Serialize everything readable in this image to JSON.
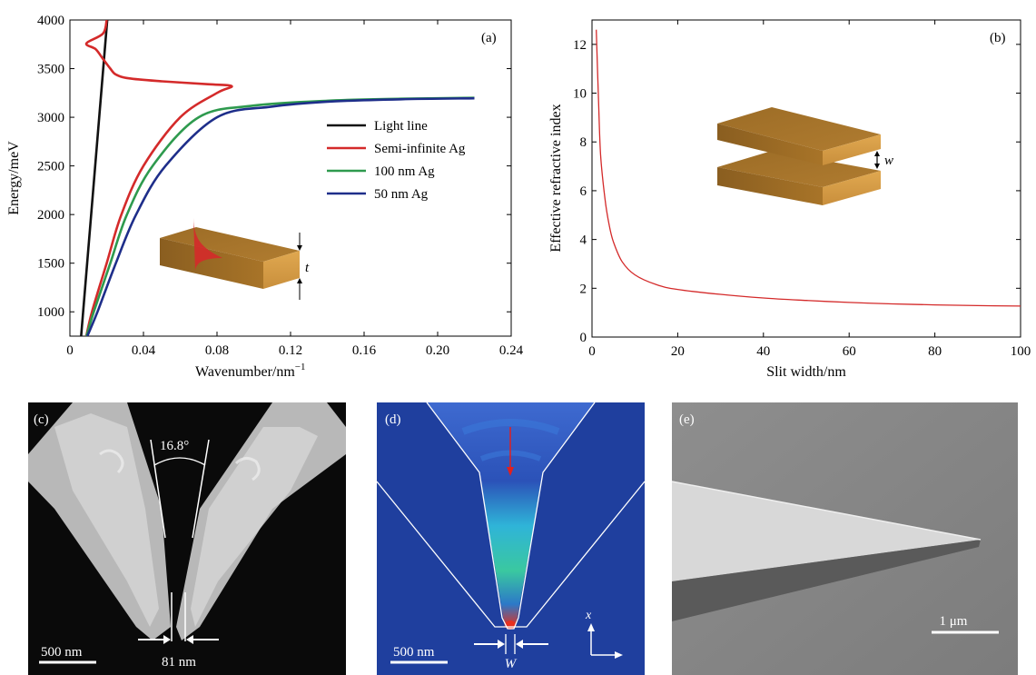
{
  "chart_data": [
    {
      "panel": "(a)",
      "type": "line",
      "xlabel": "Wavenumber/nm",
      "xlabel_sup": "−1",
      "ylabel": "Energy/meV",
      "xlim": [
        0,
        0.24
      ],
      "ylim": [
        750,
        4000
      ],
      "xticks": [
        "0",
        "0.04",
        "0.08",
        "0.12",
        "0.16",
        "0.20",
        "0.24"
      ],
      "yticks": [
        "1000",
        "1500",
        "2000",
        "2500",
        "3000",
        "3500",
        "4000"
      ],
      "legend_position": "right",
      "inset_label": "t",
      "series": [
        {
          "name": "Light line",
          "color": "#111111",
          "points": [
            [
              0.0061,
              750
            ],
            [
              0.0203,
              4000
            ]
          ]
        },
        {
          "name": "Semi-infinite Ag",
          "color": "#d42a2a",
          "points": [
            [
              0.0089,
              750
            ],
            [
              0.012,
              1000
            ],
            [
              0.02,
              1500
            ],
            [
              0.028,
              2000
            ],
            [
              0.04,
              2500
            ],
            [
              0.06,
              3000
            ],
            [
              0.08,
              3250
            ],
            [
              0.088,
              3320
            ],
            [
              0.075,
              3340
            ],
            [
              0.05,
              3370
            ],
            [
              0.032,
              3400
            ],
            [
              0.025,
              3440
            ],
            [
              0.022,
              3500
            ],
            [
              0.018,
              3600
            ],
            [
              0.014,
              3700
            ],
            [
              0.009,
              3760
            ],
            [
              0.018,
              3860
            ],
            [
              0.02,
              4000
            ]
          ]
        },
        {
          "name": "100 nm Ag",
          "color": "#2e9a4e",
          "points": [
            [
              0.009,
              750
            ],
            [
              0.013,
              1000
            ],
            [
              0.022,
              1500
            ],
            [
              0.031,
              2000
            ],
            [
              0.045,
              2500
            ],
            [
              0.07,
              3000
            ],
            [
              0.1,
              3120
            ],
            [
              0.14,
              3170
            ],
            [
              0.18,
              3190
            ],
            [
              0.22,
              3200
            ]
          ]
        },
        {
          "name": "50 nm Ag",
          "color": "#1e2e8a",
          "points": [
            [
              0.0095,
              750
            ],
            [
              0.015,
              1000
            ],
            [
              0.025,
              1500
            ],
            [
              0.036,
              2000
            ],
            [
              0.052,
              2500
            ],
            [
              0.08,
              3000
            ],
            [
              0.11,
              3110
            ],
            [
              0.14,
              3160
            ],
            [
              0.18,
              3185
            ],
            [
              0.22,
              3195
            ]
          ]
        }
      ]
    },
    {
      "panel": "(b)",
      "type": "line",
      "xlabel": "Slit width/nm",
      "ylabel": "Effective refractive index",
      "xlim": [
        0,
        100
      ],
      "ylim": [
        0,
        13
      ],
      "xticks": [
        "0",
        "20",
        "40",
        "60",
        "80",
        "100"
      ],
      "yticks": [
        "0",
        "2",
        "4",
        "6",
        "8",
        "10",
        "12"
      ],
      "inset_label": "w",
      "series": [
        {
          "color": "#d42a2a",
          "points": [
            [
              1,
              12.6
            ],
            [
              1.5,
              9.8
            ],
            [
              2,
              7.5
            ],
            [
              3,
              5.7
            ],
            [
              4,
              4.6
            ],
            [
              5,
              3.9
            ],
            [
              7,
              3.1
            ],
            [
              10,
              2.55
            ],
            [
              15,
              2.15
            ],
            [
              20,
              1.95
            ],
            [
              30,
              1.75
            ],
            [
              40,
              1.6
            ],
            [
              50,
              1.5
            ],
            [
              60,
              1.42
            ],
            [
              70,
              1.36
            ],
            [
              80,
              1.32
            ],
            [
              90,
              1.29
            ],
            [
              100,
              1.27
            ]
          ]
        }
      ]
    }
  ],
  "images": {
    "c": {
      "label": "(c)",
      "angle": "16.8°",
      "gap": "81 nm",
      "scale": "500 nm"
    },
    "d": {
      "label": "(d)",
      "gap_symbol": "W",
      "scale": "500 nm",
      "axis_x": "x"
    },
    "e": {
      "label": "(e)",
      "scale": "1 μm"
    }
  },
  "colors": {
    "gold_top": "#a8762c",
    "gold_side": "#d9a14a",
    "field_red": "#d42a2a",
    "field_blue": "#2a4aa8"
  }
}
